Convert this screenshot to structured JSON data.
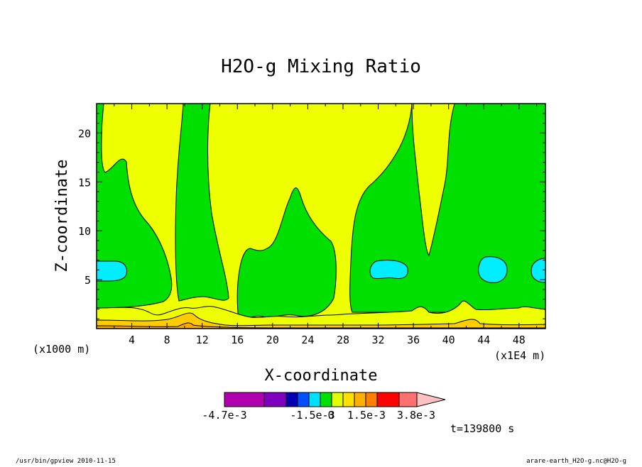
{
  "chart_data": {
    "type": "heatmap",
    "title": "H2O-g Mixing Ratio",
    "xlabel": "X-coordinate",
    "ylabel": "Z-coordinate",
    "x_unit_left": "(x1000 m)",
    "x_unit_right": "(x1E4 m)",
    "xlim": [
      0,
      51
    ],
    "ylim": [
      0,
      23
    ],
    "x_ticks": [
      "4",
      "8",
      "12",
      "16",
      "20",
      "24",
      "28",
      "32",
      "36",
      "40",
      "44",
      "48"
    ],
    "y_ticks": [
      "5",
      "10",
      "15",
      "20"
    ],
    "colorbar": {
      "colors": [
        "#b000b0",
        "#8000c0",
        "#0000b0",
        "#0050ff",
        "#00e0ff",
        "#00e000",
        "#e0ff00",
        "#ffe000",
        "#ffb000",
        "#ff8000",
        "#ff0000",
        "#ff7070",
        "#ffc0c0"
      ],
      "labels": [
        "-4.7e-3",
        "-1.5e-3",
        "0",
        "1.5e-3",
        "3.8e-3"
      ]
    },
    "field_colors": {
      "green": "#00e000",
      "yellow": "#eeff00",
      "cyan": "#00eeff",
      "orange1": "#ffcc00",
      "orange2": "#ffaa00"
    }
  },
  "time_label": "t=139800 s",
  "footer": {
    "left": "/usr/bin/gpview  2010-11-15",
    "right": "arare-earth_H2O-g.nc@H2O-g"
  }
}
